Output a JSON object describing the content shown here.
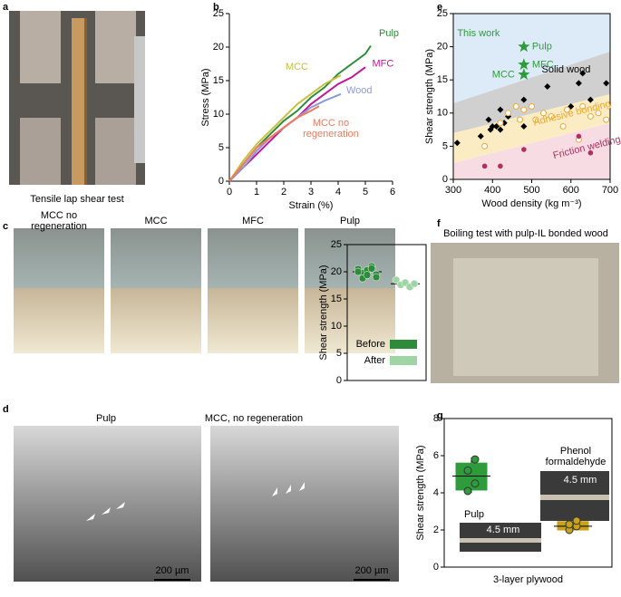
{
  "panel_labels": [
    "a",
    "b",
    "c",
    "d",
    "e",
    "f",
    "g"
  ],
  "photos": {
    "a_caption": "Tensile lap shear test",
    "c_titles": [
      "MCC no regeneration",
      "MCC",
      "MFC",
      "Pulp"
    ],
    "d_titles": [
      "Pulp",
      "MCC, no regeneration"
    ],
    "d_scale": [
      "200 µm",
      "200 µm"
    ]
  },
  "chart_data": [
    {
      "type": "line",
      "xlabel": "Strain (%)",
      "ylabel": "Stress (MPa)",
      "xlim": [
        0,
        6
      ],
      "ylim": [
        0,
        25
      ],
      "xticks": [
        0,
        1,
        2,
        3,
        4,
        5,
        6
      ],
      "yticks": [
        0,
        5,
        10,
        15,
        20,
        25
      ],
      "series": [
        {
          "name": "Pulp",
          "color": "#2e8b3a",
          "x": [
            0,
            0.5,
            1,
            1.5,
            2,
            2.5,
            3,
            3.5,
            4,
            4.5,
            5,
            5.2
          ],
          "values": [
            0,
            2.5,
            5,
            7,
            9,
            10.5,
            12.5,
            14,
            16,
            17.5,
            19,
            20.2
          ]
        },
        {
          "name": "MFC",
          "color": "#c0189a",
          "x": [
            0,
            0.5,
            1,
            1.5,
            2,
            2.5,
            3,
            3.5,
            4,
            4.5,
            5
          ],
          "values": [
            0,
            2,
            4,
            6,
            8,
            9.5,
            11.5,
            13,
            14.5,
            15.5,
            17
          ]
        },
        {
          "name": "MCC",
          "color": "#c8c040",
          "x": [
            0,
            0.5,
            1,
            1.5,
            2,
            2.5,
            3,
            3.5,
            4.1
          ],
          "values": [
            0,
            3,
            5.5,
            7.5,
            9.5,
            11.5,
            13,
            14.5,
            15.8
          ]
        },
        {
          "name": "Wood",
          "color": "#8a9ad8",
          "x": [
            0,
            0.5,
            1,
            1.5,
            2,
            2.5,
            3,
            3.5,
            4.1
          ],
          "values": [
            0,
            2,
            4.5,
            6.5,
            8,
            9.5,
            11,
            12,
            13
          ]
        },
        {
          "name": "MCC no regeneration",
          "color": "#f07a5a",
          "x": [
            0,
            0.5,
            1,
            1.5,
            2,
            2.5,
            3,
            3.3
          ],
          "values": [
            0,
            2.5,
            5,
            6.5,
            8,
            9.5,
            10.5,
            11.2
          ]
        }
      ]
    },
    {
      "type": "scatter",
      "xlabel": "Wood density (kg m⁻³)",
      "ylabel": "Shear strength (MPa)",
      "xlim": [
        300,
        700
      ],
      "ylim": [
        0,
        25
      ],
      "xticks": [
        300,
        400,
        500,
        600,
        700
      ],
      "yticks": [
        0,
        5,
        10,
        15,
        20,
        25
      ],
      "series": [
        {
          "name": "Solid wood",
          "color": "#000000",
          "marker": "diamond",
          "x": [
            310,
            370,
            390,
            395,
            400,
            410,
            420,
            420,
            430,
            440,
            480,
            480,
            540,
            600,
            620,
            630,
            650,
            690
          ],
          "values": [
            5.5,
            6.5,
            9,
            7.5,
            8,
            8,
            7.5,
            10.5,
            8.5,
            9.5,
            12,
            8,
            14,
            11,
            14.5,
            16,
            12,
            14.5
          ]
        },
        {
          "name": "Adhesive bonding",
          "color": "#f0a830",
          "marker": "open-circle",
          "x": [
            380,
            420,
            440,
            460,
            470,
            480,
            500,
            510,
            530,
            550,
            580,
            590,
            620,
            630,
            650,
            670,
            690
          ],
          "values": [
            5,
            8.5,
            10,
            11,
            9,
            10.5,
            11,
            9,
            10,
            9.5,
            8,
            10.5,
            6,
            11,
            9.5,
            10,
            9
          ]
        },
        {
          "name": "Friction welding",
          "color": "#b03060",
          "marker": "circle",
          "x": [
            380,
            420,
            480,
            620,
            650
          ],
          "values": [
            2,
            2,
            4.5,
            6.5,
            4
          ]
        },
        {
          "name": "This work",
          "color": "#2e9c3a",
          "marker": "star",
          "x": [
            480,
            480,
            480
          ],
          "values": [
            20,
            17.3,
            15.8
          ],
          "point_labels": [
            "Pulp",
            "MFC",
            "MCC"
          ]
        }
      ]
    },
    {
      "type": "strip",
      "title": "Boiling test with pulp-IL bonded wood",
      "ylabel": "Shear strength (MPa)",
      "ylim": [
        0,
        25
      ],
      "yticks": [
        0,
        5,
        10,
        15,
        20,
        25
      ],
      "series": [
        {
          "name": "Before",
          "color": "#2e8b3a",
          "values": [
            20.5,
            19.8,
            20.3,
            21,
            19.5,
            20,
            18.8,
            19.4,
            20.6,
            19
          ],
          "mean": 20
        },
        {
          "name": "After",
          "color": "#9fd4a4",
          "values": [
            18.5,
            17.6,
            18,
            17.2,
            17.8
          ],
          "mean": 17.8
        }
      ]
    },
    {
      "type": "box",
      "xlabel": "3-layer  plywood",
      "ylabel": "Shear strength (MPa)",
      "ylim": [
        0,
        8
      ],
      "yticks": [
        0,
        2,
        4,
        6,
        8
      ],
      "categories": [
        "Pulp",
        "Phenol formaldehyde"
      ],
      "colors": [
        "#2e9c3a",
        "#c8a21a"
      ],
      "boxes": [
        {
          "min": 4.0,
          "q1": 4.15,
          "median": 4.9,
          "q3": 5.6,
          "max": 5.9,
          "points": [
            4.1,
            4.5,
            5.2,
            5.8
          ]
        },
        {
          "min": 1.95,
          "q1": 2.0,
          "median": 2.2,
          "q3": 2.45,
          "max": 2.55,
          "points": [
            2.0,
            2.2,
            2.3,
            2.5
          ]
        }
      ],
      "inset_labels": [
        "4.5 mm",
        "4.5 mm"
      ]
    }
  ]
}
